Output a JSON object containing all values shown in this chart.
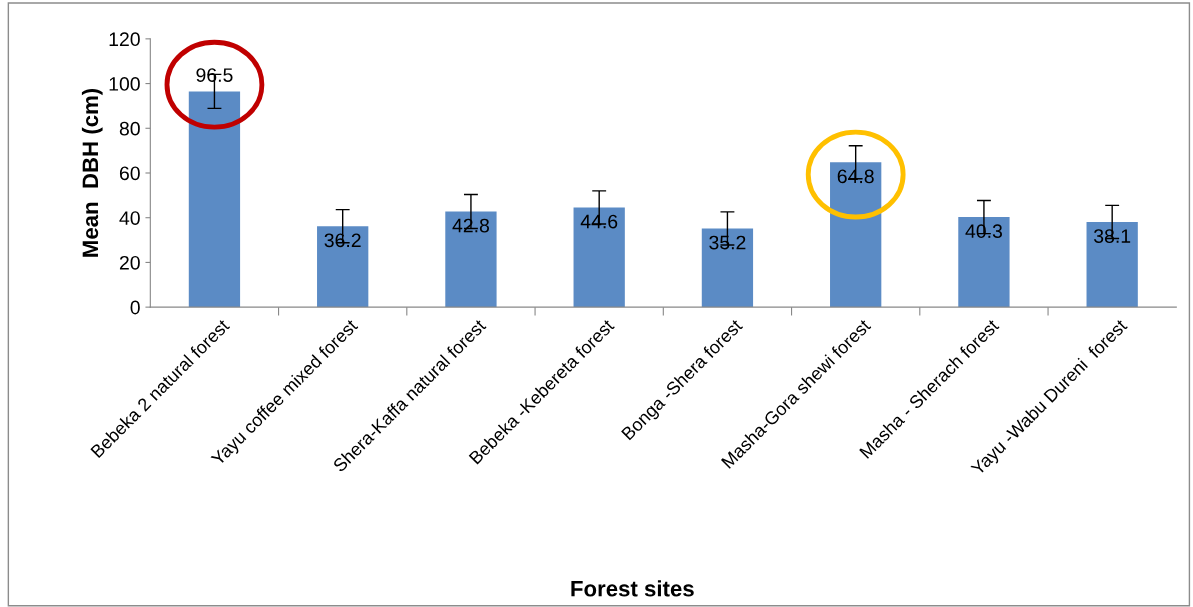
{
  "chart_data": {
    "type": "bar",
    "xlabel": "Forest sites",
    "ylabel": "Mean  DBH (cm)",
    "categories": [
      "Bebeka 2 natural forest",
      "Yayu coffee mixed forest",
      "Shera-Kaffa natural forest",
      "Bebeka -Kebereta forest",
      "Bonga -Shera forest",
      "Masha-Gora shewi forest",
      "Masha - Sherach forest",
      "Yayu -Wabu Dureni  forest"
    ],
    "values": [
      96.5,
      36.2,
      42.8,
      44.6,
      35.2,
      64.8,
      40.3,
      38.1
    ],
    "errors": [
      7.6,
      7.4,
      7.6,
      7.4,
      7.4,
      7.4,
      7.4,
      7.4
    ],
    "color": "#5b8bc5",
    "ylim": [
      0,
      120
    ],
    "yticks": [
      0,
      20,
      40,
      60,
      80,
      100,
      120
    ],
    "data_labels": true,
    "grid": false,
    "legend": false
  }
}
